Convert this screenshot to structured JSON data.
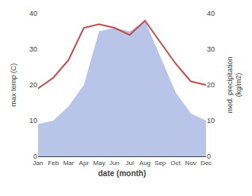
{
  "chart_data": {
    "type": "line",
    "categories": [
      "Jan",
      "Feb",
      "Mar",
      "Apr",
      "May",
      "Jun",
      "Jul",
      "Aug",
      "Sep",
      "Oct",
      "Nov",
      "Dec"
    ],
    "xlabel": "date (month)",
    "ylabel": "max temp (C)",
    "y2label": "med. precipitation\n(kg/m2)",
    "series": [
      {
        "type": "area",
        "axis": "y2",
        "color": "#b8c4e8",
        "values": [
          9,
          10,
          14,
          20,
          35,
          36,
          35,
          38,
          28,
          18,
          12,
          10
        ]
      },
      {
        "type": "line",
        "color": "#c0504d",
        "values": [
          19,
          22,
          27,
          36,
          37,
          36,
          34,
          38,
          32,
          26,
          21,
          20
        ]
      }
    ],
    "ylim": [
      0,
      40
    ],
    "yticks": [
      0,
      10,
      20,
      30,
      40
    ],
    "y2lim": [
      0,
      40
    ],
    "y2ticks": [
      0,
      10,
      20,
      30,
      40
    ],
    "grid": false
  }
}
